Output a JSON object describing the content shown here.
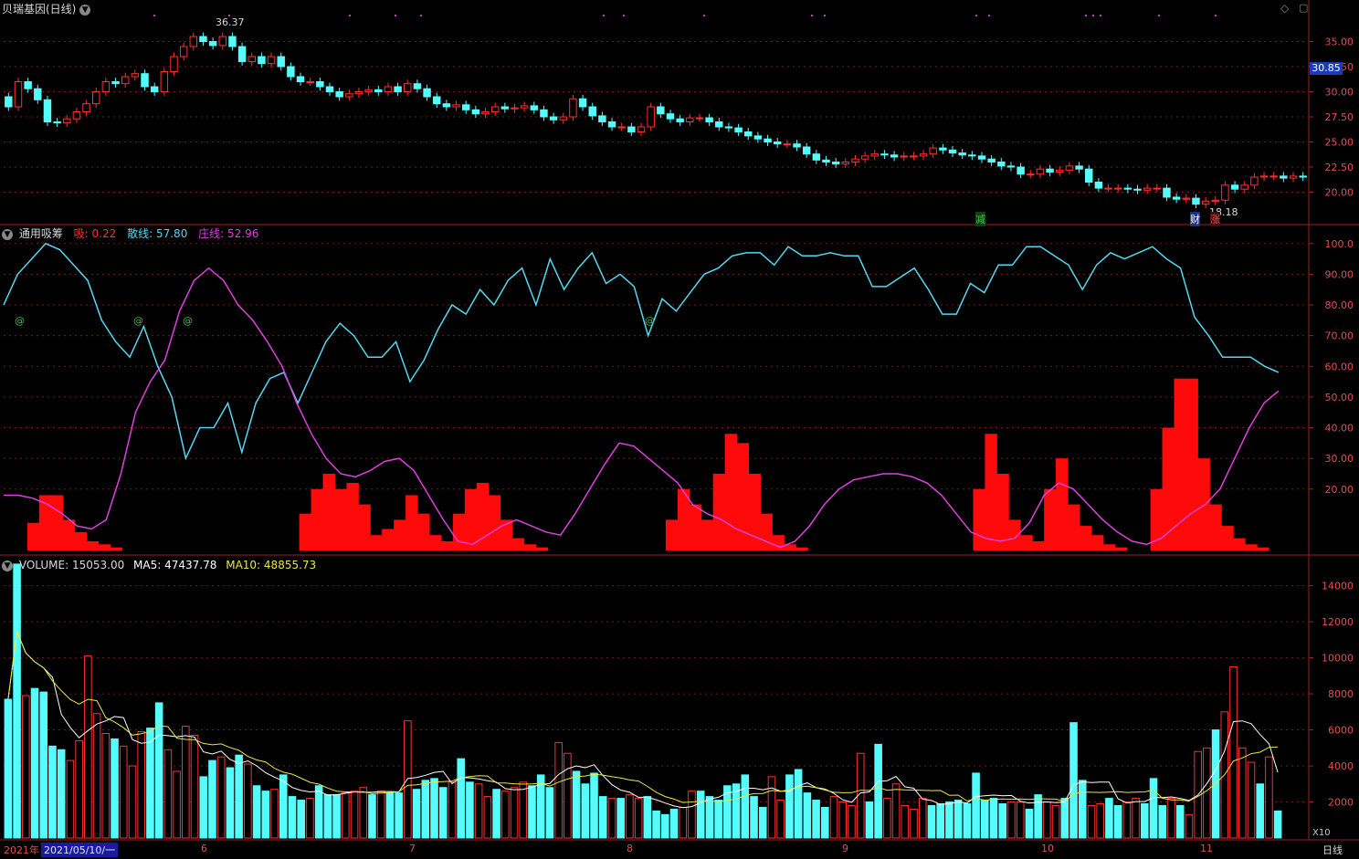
{
  "header": {
    "title": "贝瑞基因(日线)",
    "price_high_label": "36.37",
    "price_low_label": "18.18",
    "current_price": "30.85",
    "top_right_icon": "diamond-icon"
  },
  "indicator": {
    "name": "通用吸筹",
    "xi_label": "吸:",
    "xi_value": "0.22",
    "san_label": "散线:",
    "san_value": "57.80",
    "zhuang_label": "庄线:",
    "zhuang_value": "52.96",
    "markers": [
      "@",
      "@",
      "@",
      "@"
    ]
  },
  "volume": {
    "label": "VOLUME:",
    "value": "15053.00",
    "ma5_label": "MA5:",
    "ma5_value": "47437.78",
    "ma10_label": "MA10:",
    "ma10_value": "48855.73",
    "unit": "X10"
  },
  "events": [
    "减",
    "财",
    "涨"
  ],
  "xaxis": {
    "year": "2021年",
    "date_box": "2021/05/10/一",
    "months": [
      "6",
      "7",
      "8",
      "9",
      "10",
      "11"
    ],
    "period": "日线"
  },
  "colors": {
    "up": "#ff3030",
    "down": "#54fcfc",
    "san": "#54d8f0",
    "zhuang": "#e040e0",
    "ma5": "#ffffff",
    "ma10": "#e8e840"
  },
  "chart_data": [
    {
      "type": "candlestick",
      "ylim": [
        17.5,
        37.5
      ],
      "yticks": [
        "35.00",
        "32.50",
        "30.00",
        "27.50",
        "25.00",
        "22.50",
        "20.00"
      ],
      "close": [
        28.5,
        31.0,
        30.3,
        29.2,
        27.0,
        26.9,
        27.3,
        28.0,
        28.8,
        30.0,
        31.0,
        30.8,
        31.5,
        31.8,
        30.5,
        30.0,
        32.0,
        33.5,
        34.5,
        35.5,
        35.0,
        34.6,
        35.5,
        34.5,
        33.0,
        33.5,
        32.8,
        33.5,
        32.5,
        31.5,
        31.0,
        31.0,
        30.5,
        30.0,
        29.5,
        29.8,
        30.0,
        30.2,
        30.0,
        30.5,
        30.0,
        30.8,
        30.3,
        29.5,
        28.8,
        28.5,
        28.7,
        28.2,
        27.8,
        28.0,
        28.5,
        28.3,
        28.4,
        28.6,
        28.2,
        27.5,
        27.2,
        27.5,
        29.3,
        28.5,
        27.6,
        27.0,
        26.5,
        26.5,
        26.0,
        26.5,
        28.5,
        27.8,
        27.3,
        27.0,
        27.4,
        27.4,
        27.0,
        26.5,
        26.4,
        26.0,
        25.6,
        25.3,
        25.0,
        24.8,
        24.8,
        24.5,
        23.8,
        23.2,
        23.0,
        22.8,
        23.0,
        23.3,
        23.6,
        23.8,
        23.7,
        23.5,
        23.6,
        23.6,
        23.8,
        24.4,
        24.2,
        23.9,
        23.7,
        23.6,
        23.3,
        23.0,
        22.6,
        22.5,
        21.8,
        21.8,
        22.3,
        22.0,
        22.2,
        22.6,
        22.3,
        21.0,
        20.4,
        20.4,
        20.4,
        20.3,
        20.2,
        20.4,
        20.4,
        19.5,
        19.3,
        19.4,
        18.8,
        19.1,
        19.2,
        20.7,
        20.3,
        20.7,
        21.5,
        21.6,
        21.6,
        21.4,
        21.6,
        21.5
      ],
      "series_line_value": "30.85"
    },
    {
      "type": "line+bar",
      "name": "通用吸筹",
      "ylim": [
        0,
        105
      ],
      "yticks": [
        "100.0",
        "90.00",
        "80.00",
        "70.00",
        "60.00",
        "50.00",
        "40.00",
        "30.00",
        "20.00"
      ],
      "series": [
        {
          "name": "散线",
          "values": [
            80,
            90,
            95,
            100,
            98,
            93,
            88,
            75,
            68,
            63,
            73,
            60,
            50,
            30,
            40,
            40,
            48,
            32,
            48,
            56,
            58,
            48,
            58,
            68,
            74,
            70,
            63,
            63,
            68,
            55,
            62,
            72,
            80,
            77,
            85,
            80,
            88,
            92,
            80,
            95,
            85,
            92,
            97,
            87,
            90,
            86,
            70,
            82,
            78,
            84,
            90,
            92,
            96,
            97,
            97,
            93,
            99,
            96,
            96,
            97,
            96,
            96,
            86,
            86,
            89,
            92,
            85,
            77,
            77,
            87,
            84,
            93,
            93,
            99,
            99,
            96,
            93,
            85,
            93,
            97,
            95,
            97,
            99,
            95,
            92,
            76,
            70,
            63,
            63,
            63,
            60,
            58
          ]
        },
        {
          "name": "庄线",
          "values": [
            18,
            18,
            17,
            15,
            12,
            8,
            7,
            10,
            25,
            45,
            55,
            62,
            78,
            88,
            92,
            88,
            80,
            75,
            68,
            60,
            48,
            38,
            30,
            25,
            24,
            26,
            29,
            30,
            26,
            18,
            10,
            3,
            2,
            5,
            8,
            10,
            8,
            6,
            5,
            12,
            20,
            28,
            35,
            34,
            30,
            26,
            22,
            15,
            12,
            10,
            7,
            5,
            3,
            1,
            3,
            8,
            15,
            20,
            23,
            24,
            25,
            25,
            24,
            22,
            18,
            12,
            6,
            4,
            3,
            4,
            9,
            18,
            22,
            20,
            15,
            10,
            6,
            3,
            2,
            4,
            8,
            12,
            15,
            20,
            30,
            40,
            48,
            52
          ]
        },
        {
          "name": "吸",
          "values": [
            0,
            0,
            9,
            18,
            18,
            10,
            6,
            3,
            2,
            1,
            0,
            0,
            0,
            0,
            0,
            0,
            0,
            0,
            0,
            0,
            0,
            0,
            0,
            0,
            0,
            12,
            20,
            25,
            20,
            22,
            15,
            5,
            7,
            10,
            18,
            12,
            5,
            3,
            12,
            20,
            22,
            18,
            10,
            4,
            2,
            1,
            0,
            0,
            0,
            0,
            0,
            0,
            0,
            0,
            0,
            0,
            10,
            20,
            15,
            10,
            25,
            38,
            35,
            25,
            12,
            5,
            2,
            1,
            0,
            0,
            0,
            0,
            0,
            0,
            0,
            0,
            0,
            0,
            0,
            0,
            0,
            0,
            20,
            38,
            25,
            10,
            5,
            3,
            20,
            30,
            15,
            8,
            5,
            2,
            1,
            0,
            0,
            20,
            40,
            56,
            56,
            30,
            15,
            8,
            4,
            2,
            1,
            0
          ]
        }
      ]
    },
    {
      "type": "bar",
      "name": "VOLUME",
      "ylim": [
        0,
        15500
      ],
      "yticks": [
        "14000",
        "12000",
        "10000",
        "8000",
        "6000",
        "4000",
        "2000"
      ],
      "values": [
        7700,
        15200,
        7900,
        8300,
        8100,
        5100,
        4900,
        4300,
        5400,
        10100,
        6900,
        5800,
        5500,
        5100,
        4000,
        5900,
        6100,
        7500,
        4900,
        3700,
        6200,
        5700,
        3400,
        4300,
        4500,
        3900,
        4600,
        4100,
        2900,
        2600,
        2700,
        3500,
        2300,
        2100,
        2200,
        2900,
        2400,
        2400,
        2500,
        2600,
        2800,
        2400,
        2600,
        2500,
        2500,
        6500,
        2700,
        3200,
        3300,
        2800,
        3100,
        4400,
        3100,
        3000,
        2300,
        2700,
        2600,
        2800,
        3100,
        2900,
        3500,
        2800,
        5300,
        4700,
        3700,
        3000,
        3600,
        2300,
        2200,
        2200,
        2400,
        2200,
        2300,
        1500,
        1300,
        1600,
        1700,
        2600,
        2600,
        2300,
        2100,
        2900,
        3000,
        3500,
        2300,
        1700,
        3400,
        2100,
        3500,
        3800,
        2500,
        2100,
        1700,
        2300,
        2000,
        1800,
        4700,
        2000,
        5200,
        2200,
        3000,
        1800,
        1600,
        2200,
        1800,
        1900,
        2000,
        2100,
        1900,
        3600,
        2100,
        2200,
        1900,
        2000,
        2000,
        1600,
        2400,
        2000,
        1800,
        2200,
        6400,
        3200,
        1800,
        1900,
        2200,
        1800,
        2000,
        2200,
        1900,
        3300,
        1800,
        2200,
        1800,
        1300,
        4800,
        5000,
        6000,
        7000,
        9500,
        5000,
        4200,
        3000,
        4500,
        1500
      ],
      "ma5_value": "47437.78",
      "ma10_value": "48855.73"
    }
  ]
}
